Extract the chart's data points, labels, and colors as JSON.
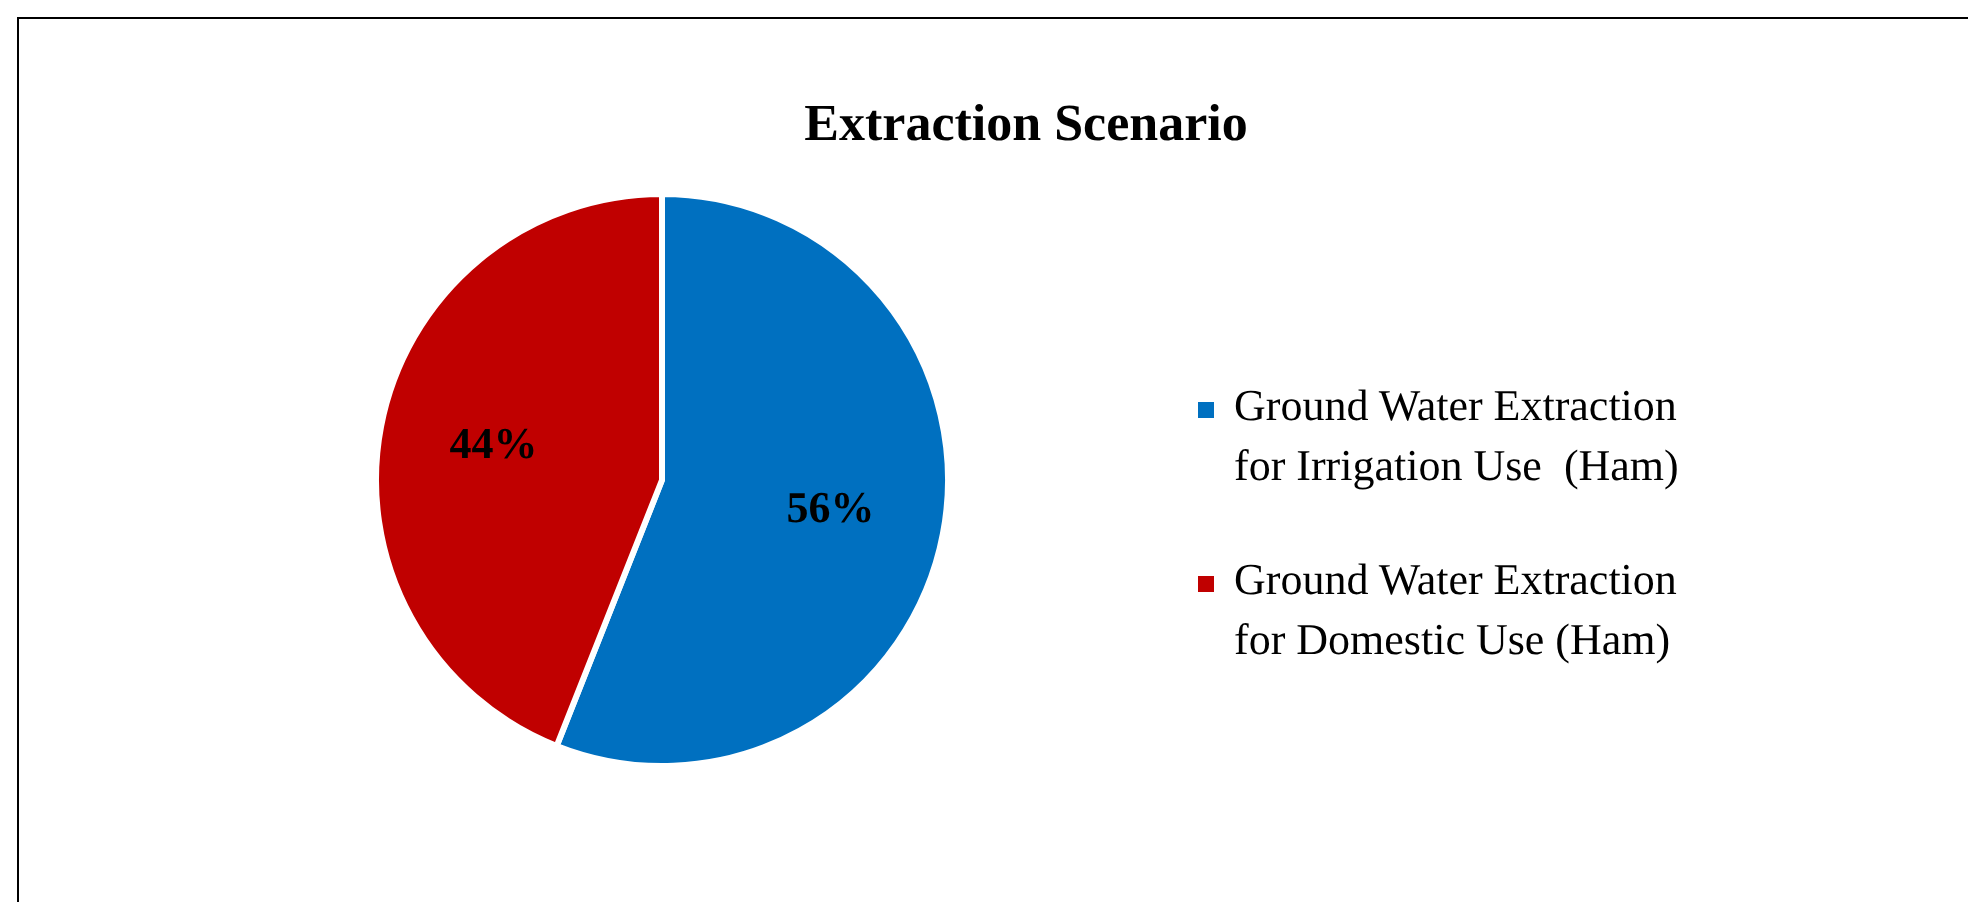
{
  "chart_data": {
    "type": "pie",
    "title": "Extraction Scenario",
    "categories": [
      "Ground Water Extraction for Irrigation Use  (Ham)",
      "Ground Water Extraction for Domestic Use (Ham)"
    ],
    "values": [
      56,
      44
    ],
    "colors": [
      "#0070c0",
      "#c00000"
    ],
    "value_labels": [
      "56%",
      "44%"
    ],
    "legend": "right"
  }
}
